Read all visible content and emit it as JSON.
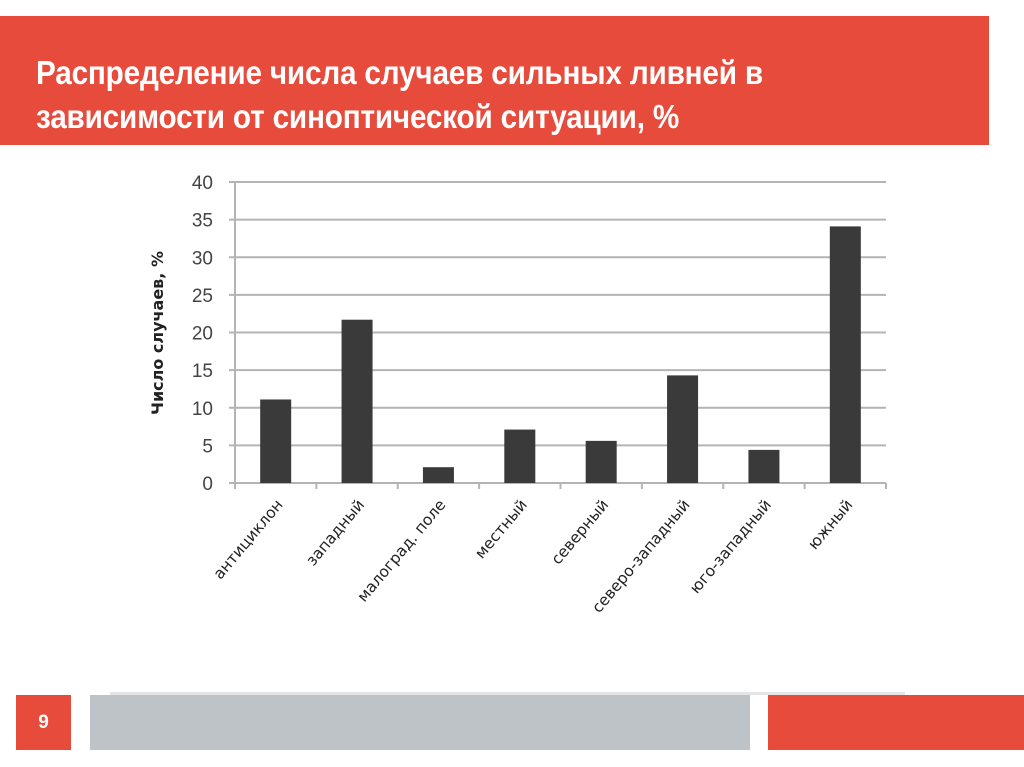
{
  "slide": {
    "title": "Распределение числа случаев сильных ливней в\nзависимости от синоптической ситуации, %",
    "page_number": "9"
  },
  "colors": {
    "accent_red": "#e64b3c",
    "footer_gray": "#bec3c7",
    "bar_fill": "#3a3a3a",
    "grid": "#b4b4b4"
  },
  "chart_data": {
    "type": "bar",
    "title": "",
    "xlabel": "",
    "ylabel": "Число случаев, %",
    "categories": [
      "антициклон",
      "западный",
      "малоград. поле",
      "местный",
      "северный",
      "северо-западный",
      "юго-западный",
      "южный"
    ],
    "values": [
      11.1,
      21.7,
      2.1,
      7.1,
      5.6,
      14.3,
      4.4,
      34.1
    ],
    "ylim": [
      0,
      40
    ],
    "yticks": [
      0,
      5,
      10,
      15,
      20,
      25,
      30,
      35,
      40
    ],
    "grid": true,
    "legend": null
  }
}
